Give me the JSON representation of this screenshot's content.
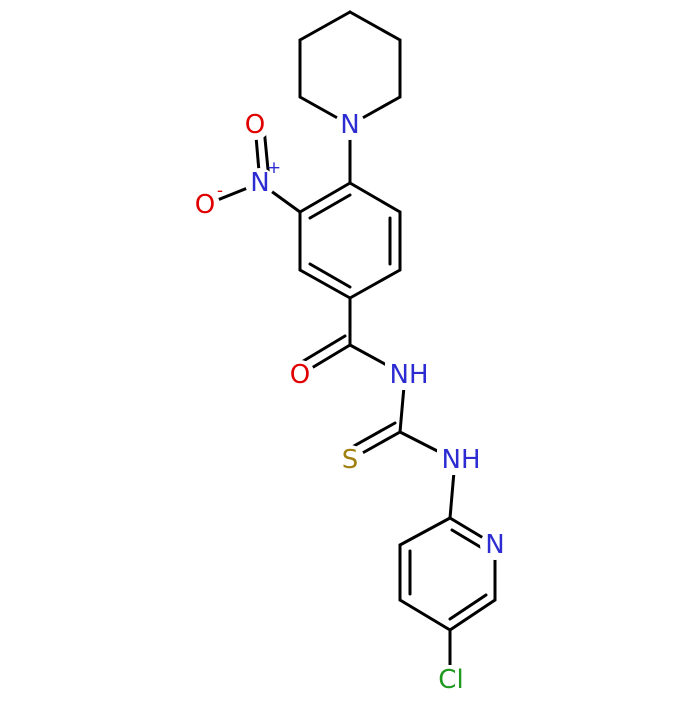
{
  "atoms": [
    {
      "symbol": "N"
    },
    {
      "symbol": "N",
      "charge": "+"
    },
    {
      "symbol": "O"
    },
    {
      "symbol": "O",
      "charge": "-"
    },
    {
      "symbol": "O"
    },
    {
      "symbol": "NH"
    },
    {
      "symbol": "S"
    },
    {
      "symbol": "NH"
    },
    {
      "symbol": "N"
    },
    {
      "symbol": "Cl"
    }
  ]
}
